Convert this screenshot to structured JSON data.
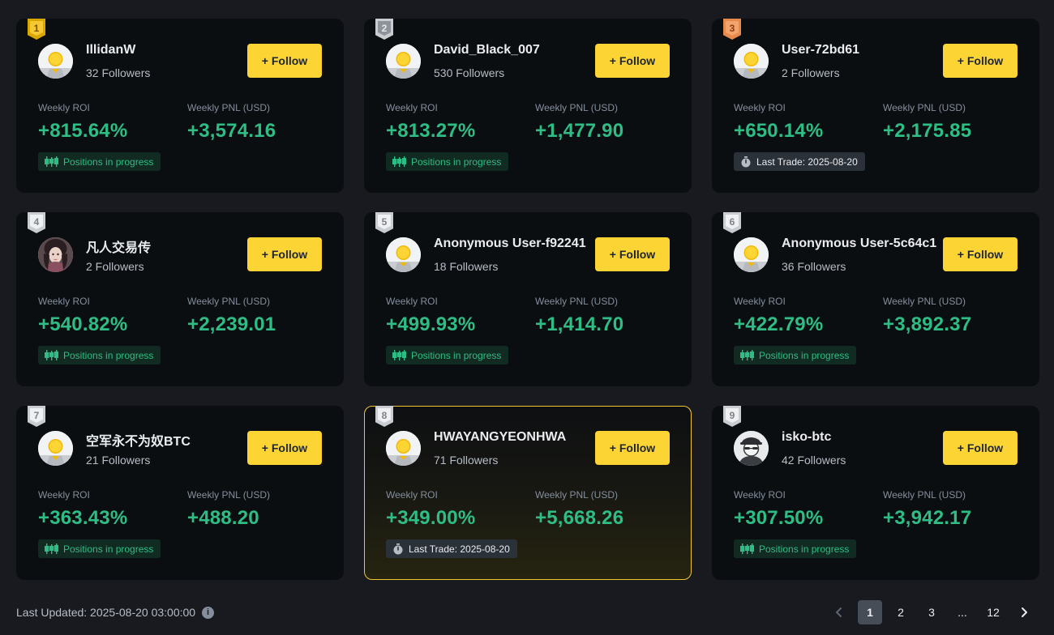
{
  "follow_label": "+ Follow",
  "labels": {
    "roi": "Weekly ROI",
    "pnl": "Weekly PNL (USD)"
  },
  "cards": [
    {
      "rank": "1",
      "name": "IllidanW",
      "followers": "32 Followers",
      "roi": "+815.64%",
      "pnl": "+3,574.16",
      "tag": "Positions in progress",
      "tag_type": "progress",
      "avatar": "default-avatar"
    },
    {
      "rank": "2",
      "name": "David_Black_007",
      "followers": "530 Followers",
      "roi": "+813.27%",
      "pnl": "+1,477.90",
      "tag": "Positions in progress",
      "tag_type": "progress",
      "avatar": "default-avatar"
    },
    {
      "rank": "3",
      "name": "User-72bd61",
      "followers": "2 Followers",
      "roi": "+650.14%",
      "pnl": "+2,175.85",
      "tag": "Last Trade: 2025-08-20",
      "tag_type": "last",
      "avatar": "default-avatar"
    },
    {
      "rank": "4",
      "name": "凡人交易传",
      "followers": "2 Followers",
      "roi": "+540.82%",
      "pnl": "+2,239.01",
      "tag": "Positions in progress",
      "tag_type": "progress",
      "avatar": "photo-avatar"
    },
    {
      "rank": "5",
      "name": "Anonymous User-f92241",
      "followers": "18 Followers",
      "roi": "+499.93%",
      "pnl": "+1,414.70",
      "tag": "Positions in progress",
      "tag_type": "progress",
      "avatar": "default-avatar"
    },
    {
      "rank": "6",
      "name": "Anonymous User-5c64c1",
      "followers": "36 Followers",
      "roi": "+422.79%",
      "pnl": "+3,892.37",
      "tag": "Positions in progress",
      "tag_type": "progress",
      "avatar": "default-avatar"
    },
    {
      "rank": "7",
      "name": "空军永不为奴BTC",
      "followers": "21 Followers",
      "roi": "+363.43%",
      "pnl": "+488.20",
      "tag": "Positions in progress",
      "tag_type": "progress",
      "avatar": "default-avatar"
    },
    {
      "rank": "8",
      "name": "HWAYANGYEONHWA",
      "followers": "71 Followers",
      "roi": "+349.00%",
      "pnl": "+5,668.26",
      "tag": "Last Trade: 2025-08-20",
      "tag_type": "last",
      "avatar": "default-avatar"
    },
    {
      "rank": "9",
      "name": "isko-btc",
      "followers": "42 Followers",
      "roi": "+307.50%",
      "pnl": "+3,942.17",
      "tag": "Positions in progress",
      "tag_type": "progress",
      "avatar": "spy-avatar"
    }
  ],
  "footer": {
    "last_updated": "Last Updated: 2025-08-20 03:00:00",
    "pages": [
      "1",
      "2",
      "3",
      "...",
      "12"
    ],
    "active_page": "1"
  },
  "colors": {
    "accent": "#fcd535",
    "positive": "#2ebd85",
    "card_bg": "#0b0e11",
    "page_bg": "#181a20"
  }
}
